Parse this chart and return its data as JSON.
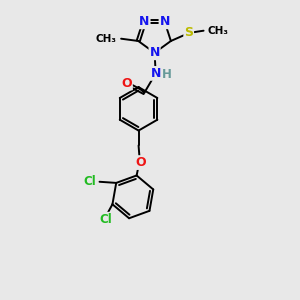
{
  "bg_color": "#e8e8e8",
  "bond_color": "#000000",
  "bond_lw": 1.4,
  "dbo": 0.05,
  "atom_colors": {
    "N": "#1515ee",
    "O": "#ee1515",
    "S": "#bbbb00",
    "Cl": "#22bb22",
    "C": "#000000",
    "H": "#669999"
  },
  "fig_size": [
    3.0,
    3.0
  ],
  "dpi": 100,
  "xlim": [
    -1,
    9
  ],
  "ylim": [
    0,
    13
  ]
}
